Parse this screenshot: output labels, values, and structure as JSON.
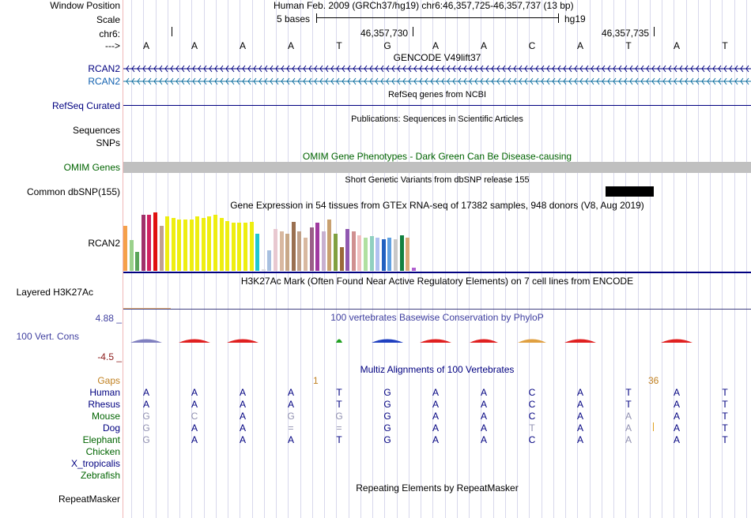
{
  "header": {
    "window_position_label": "Window Position",
    "window_position_value": "Human Feb. 2009 (GRCh37/hg19)   chr6:46,357,725-46,357,737 (13 bp)",
    "scale_label": "Scale",
    "scale_text": "5 bases",
    "scale_assembly": "hg19",
    "chr_label": "chr6:",
    "coord1": "46,357,730",
    "coord2": "46,357,735",
    "strand_label": "--->",
    "bases": [
      "A",
      "A",
      "A",
      "A",
      "T",
      "G",
      "A",
      "A",
      "C",
      "A",
      "T",
      "A",
      "T"
    ]
  },
  "tracks": {
    "gencode_title": "GENCODE V49lift37",
    "rcan2_a": "RCAN2",
    "rcan2_b": "RCAN2",
    "refseq_title": "RefSeq genes from NCBI",
    "refseq_label": "RefSeq Curated",
    "pubs_title": "Publications: Sequences in Scientific Articles",
    "sequences_label": "Sequences",
    "snps_label": "SNPs",
    "omim_title": "OMIM Gene Phenotypes - Dark Green Can Be Disease-causing",
    "omim_label": "OMIM Genes",
    "dbsnp_title": "Short Genetic Variants from dbSNP release 155",
    "dbsnp_label": "Common dbSNP(155)",
    "gtex_title": "Gene Expression in 54 tissues from GTEx RNA-seq of 17382 samples, 948 donors (V8, Aug 2019)",
    "gtex_label": "RCAN2",
    "h3k27_title": "H3K27Ac Mark (Often Found Near Active Regulatory Elements) on 7 cell lines from ENCODE",
    "h3k27_label": "Layered H3K27Ac",
    "phylop_title": "100 vertebrates Basewise Conservation by PhyloP",
    "phylop_label": "100 Vert. Cons",
    "phylop_max": "4.88 _",
    "phylop_min": "-4.5 _",
    "multiz_title": "Multiz Alignments of 100 Vertebrates",
    "gaps_label": "Gaps",
    "gap_num1": "1",
    "gap_num2": "36",
    "repeat_title": "Repeating Elements by RepeatMasker",
    "repeat_label": "RepeatMasker"
  },
  "species": [
    {
      "name": "Human",
      "bases": [
        "A",
        "A",
        "A",
        "A",
        "T",
        "G",
        "A",
        "A",
        "C",
        "A",
        "T",
        "A",
        "T"
      ],
      "dim": []
    },
    {
      "name": "Rhesus",
      "bases": [
        "A",
        "A",
        "A",
        "A",
        "T",
        "G",
        "A",
        "A",
        "C",
        "A",
        "T",
        "A",
        "T"
      ],
      "dim": []
    },
    {
      "name": "Mouse",
      "bases": [
        "G",
        "C",
        "A",
        "G",
        "G",
        "G",
        "A",
        "A",
        "C",
        "A",
        "A",
        "A",
        "T"
      ],
      "dim": [
        0,
        1,
        3,
        4,
        10
      ]
    },
    {
      "name": "Dog",
      "bases": [
        "G",
        "A",
        "A",
        "=",
        "=",
        "G",
        "A",
        "A",
        "T",
        "A",
        "A",
        "A",
        "T"
      ],
      "dim": [
        0,
        3,
        4,
        8,
        10
      ]
    },
    {
      "name": "Elephant",
      "bases": [
        "G",
        "A",
        "A",
        "A",
        "T",
        "G",
        "A",
        "A",
        "C",
        "A",
        "A",
        "A",
        "T"
      ],
      "dim": [
        0,
        10
      ]
    },
    {
      "name": "Chicken",
      "bases": [],
      "dim": []
    },
    {
      "name": "X_tropicalis",
      "bases": [],
      "dim": []
    },
    {
      "name": "Zebrafish",
      "bases": [],
      "dim": []
    }
  ],
  "gtex_colors": [
    "#f5a04a",
    "#9bd18c",
    "#5aa55a",
    "#a0306a",
    "#d02060",
    "#e01010",
    "#c0a090",
    "#eeee10",
    "#eeee10",
    "#eeee10",
    "#eeee10",
    "#eeee10",
    "#eeee10",
    "#eeee10",
    "#eeee10",
    "#eeee10",
    "#eeee10",
    "#eeee10",
    "#eeee10",
    "#eeee10",
    "#eeee10",
    "#eeee10",
    "#20c8d0",
    "#dddddd",
    "#a8c0e0",
    "#e8c8d0",
    "#d8b8a0",
    "#c8a888",
    "#9a7050",
    "#c0a088",
    "#d8b8a0",
    "#9a6088",
    "#a03aa0",
    "#c8b0d0",
    "#c8a070",
    "#80a040",
    "#9a6a3a",
    "#9058b0",
    "#d09090",
    "#f0c0c0",
    "#b0e0a0",
    "#90d0c0",
    "#b0c0f0",
    "#2060c0",
    "#60a0e0",
    "#c8c8c8",
    "#108040",
    "#d8a878",
    "#b060d0"
  ],
  "gtex_values": [
    0.77,
    0.53,
    0.32,
    0.96,
    0.96,
    1.0,
    0.77,
    0.93,
    0.91,
    0.88,
    0.88,
    0.88,
    0.93,
    0.91,
    0.93,
    0.96,
    0.91,
    0.85,
    0.82,
    0.82,
    0.82,
    0.84,
    0.64,
    0.03,
    0.35,
    0.72,
    0.67,
    0.64,
    0.84,
    0.67,
    0.57,
    0.74,
    0.82,
    0.67,
    0.88,
    0.64,
    0.41,
    0.72,
    0.67,
    0.61,
    0.57,
    0.59,
    0.57,
    0.54,
    0.57,
    0.54,
    0.61,
    0.57,
    0.05
  ]
}
